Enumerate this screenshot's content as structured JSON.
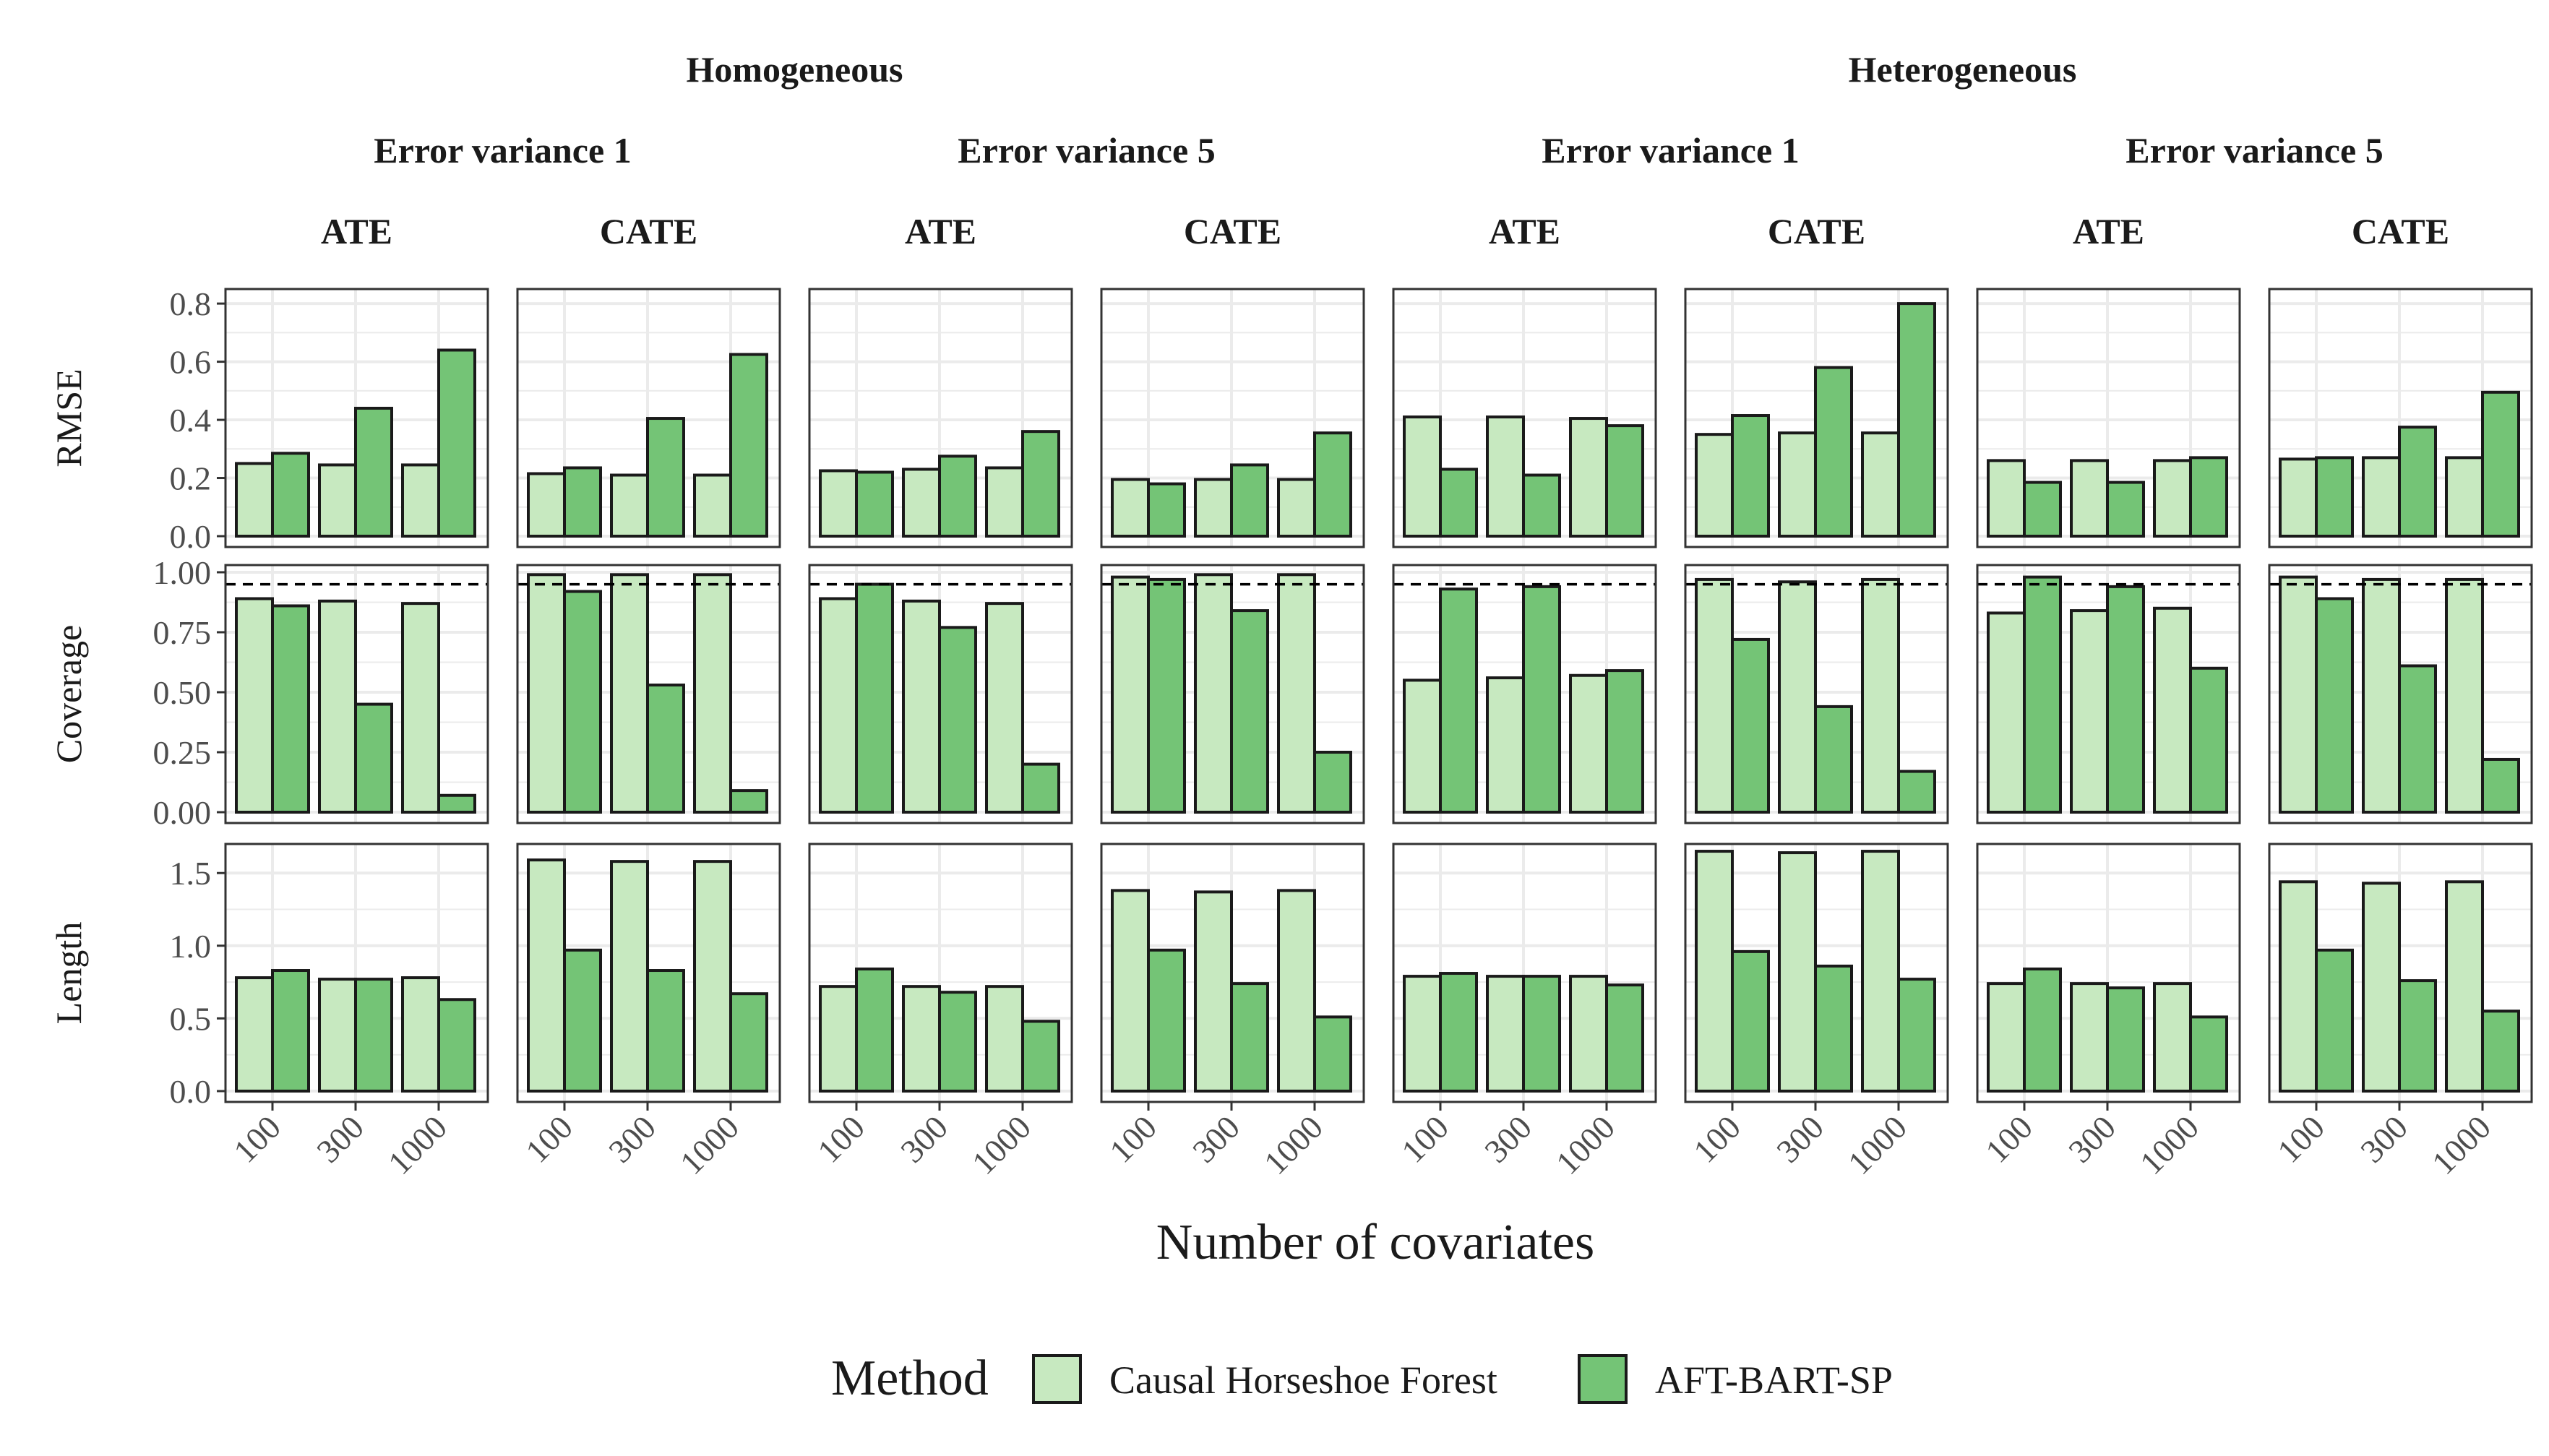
{
  "chart_data": {
    "type": "bar",
    "xlabel": "Number of covariates",
    "categories": [
      "100",
      "300",
      "1000"
    ],
    "legend": {
      "title": "Method",
      "position": "bottom",
      "items": [
        {
          "label": "Causal Horseshoe Forest",
          "color": "#c7e9c0"
        },
        {
          "label": "AFT-BART-SP",
          "color": "#74c476"
        }
      ]
    },
    "group_headers": [
      "Homogeneous",
      "Heterogeneous"
    ],
    "variance_headers": [
      "Error variance 1",
      "Error variance 5",
      "Error variance 1",
      "Error variance 5"
    ],
    "estimand_headers": [
      "ATE",
      "CATE",
      "ATE",
      "CATE",
      "ATE",
      "CATE",
      "ATE",
      "CATE"
    ],
    "rows": [
      {
        "label": "RMSE",
        "ylim": [
          0,
          0.85
        ],
        "ticks": [
          "0.0",
          "0.2",
          "0.4",
          "0.6",
          "0.8"
        ],
        "tick_values": [
          0,
          0.2,
          0.4,
          0.6,
          0.8
        ],
        "reference_line": null
      },
      {
        "label": "Coverage",
        "ylim": [
          0,
          1.03
        ],
        "ticks": [
          "0.00",
          "0.25",
          "0.50",
          "0.75",
          "1.00"
        ],
        "tick_values": [
          0,
          0.25,
          0.5,
          0.75,
          1.0
        ],
        "reference_line": 0.95
      },
      {
        "label": "Length",
        "ylim": [
          0,
          1.7
        ],
        "ticks": [
          "0.0",
          "0.5",
          "1.0",
          "1.5"
        ],
        "tick_values": [
          0,
          0.5,
          1.0,
          1.5
        ],
        "reference_line": null
      }
    ],
    "series": [
      {
        "name": "Causal Horseshoe Forest",
        "values": [
          [
            [
              0.25,
              0.245,
              0.245
            ],
            [
              0.215,
              0.21,
              0.21
            ],
            [
              0.225,
              0.23,
              0.235
            ],
            [
              0.195,
              0.195,
              0.195
            ],
            [
              0.41,
              0.41,
              0.405
            ],
            [
              0.35,
              0.355,
              0.355
            ],
            [
              0.26,
              0.26,
              0.26
            ],
            [
              0.265,
              0.27,
              0.27
            ]
          ],
          [
            [
              0.89,
              0.88,
              0.87
            ],
            [
              0.99,
              0.99,
              0.99
            ],
            [
              0.89,
              0.88,
              0.87
            ],
            [
              0.98,
              0.99,
              0.99
            ],
            [
              0.55,
              0.56,
              0.57
            ],
            [
              0.97,
              0.96,
              0.97
            ],
            [
              0.83,
              0.84,
              0.85
            ],
            [
              0.98,
              0.97,
              0.97
            ]
          ],
          [
            [
              0.78,
              0.77,
              0.78
            ],
            [
              1.59,
              1.58,
              1.58
            ],
            [
              0.72,
              0.72,
              0.72
            ],
            [
              1.38,
              1.37,
              1.38
            ],
            [
              0.79,
              0.79,
              0.79
            ],
            [
              1.65,
              1.64,
              1.65
            ],
            [
              0.74,
              0.74,
              0.74
            ],
            [
              1.44,
              1.43,
              1.44
            ]
          ]
        ]
      },
      {
        "name": "AFT-BART-SP",
        "values": [
          [
            [
              0.285,
              0.44,
              0.64
            ],
            [
              0.235,
              0.405,
              0.625
            ],
            [
              0.22,
              0.275,
              0.36
            ],
            [
              0.18,
              0.245,
              0.355
            ],
            [
              0.23,
              0.21,
              0.38
            ],
            [
              0.415,
              0.58,
              0.8
            ],
            [
              0.185,
              0.185,
              0.27
            ],
            [
              0.27,
              0.375,
              0.495
            ]
          ],
          [
            [
              0.86,
              0.45,
              0.07
            ],
            [
              0.92,
              0.53,
              0.09
            ],
            [
              0.95,
              0.77,
              0.2
            ],
            [
              0.97,
              0.84,
              0.25
            ],
            [
              0.93,
              0.94,
              0.59
            ],
            [
              0.72,
              0.44,
              0.17
            ],
            [
              0.98,
              0.94,
              0.6
            ],
            [
              0.89,
              0.61,
              0.22
            ]
          ],
          [
            [
              0.83,
              0.77,
              0.63
            ],
            [
              0.97,
              0.83,
              0.67
            ],
            [
              0.84,
              0.68,
              0.48
            ],
            [
              0.97,
              0.74,
              0.51
            ],
            [
              0.81,
              0.79,
              0.73
            ],
            [
              0.96,
              0.86,
              0.77
            ],
            [
              0.84,
              0.71,
              0.51
            ],
            [
              0.97,
              0.76,
              0.55
            ]
          ]
        ]
      }
    ]
  }
}
